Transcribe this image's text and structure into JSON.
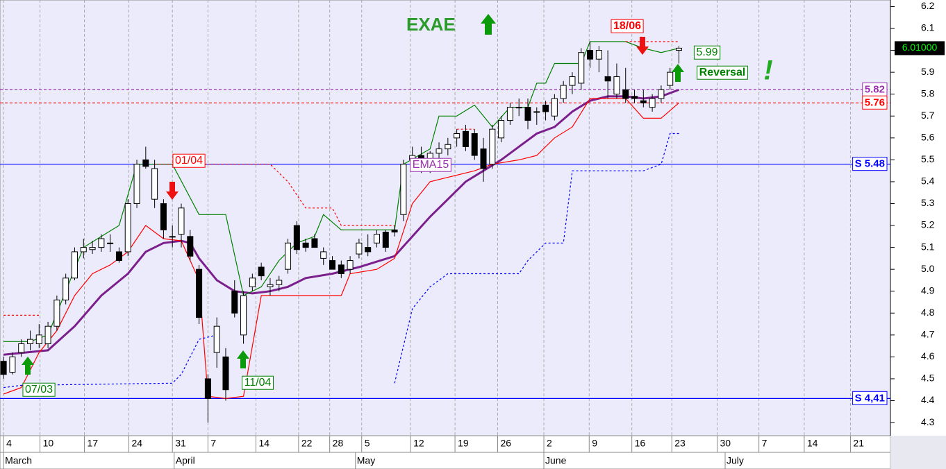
{
  "chart_data": {
    "type": "candlestick",
    "title": "EXAE",
    "open": [
      4.58,
      4.53,
      4.62,
      4.66,
      4.66,
      4.66,
      4.74,
      4.86,
      4.96,
      5.08,
      5.09,
      5.1,
      5.12,
      5.08,
      5.08,
      5.3,
      5.5,
      5.32,
      5.3,
      5.15,
      5.16,
      5.15,
      5.0,
      4.5,
      4.62,
      4.6,
      4.9,
      4.7,
      4.92,
      5.01,
      4.92,
      4.93,
      5.0,
      5.2,
      5.12,
      5.14,
      5.05,
      5.04,
      5.02,
      5.0,
      5.07,
      5.1,
      5.12,
      5.17,
      5.18,
      5.25,
      5.5,
      5.52,
      5.5,
      5.53,
      5.55,
      5.6,
      5.63,
      5.62,
      5.55,
      5.48,
      5.6,
      5.68,
      5.74,
      5.74,
      5.72,
      5.75,
      5.7,
      5.78,
      5.84,
      5.85,
      6.0,
      5.96,
      5.88,
      5.8,
      5.82,
      5.79,
      5.77,
      5.74,
      5.78,
      5.84,
      6.0
    ],
    "high": [
      4.6,
      4.62,
      4.68,
      4.72,
      4.75,
      4.76,
      4.88,
      4.98,
      5.1,
      5.14,
      5.13,
      5.16,
      5.16,
      5.1,
      5.32,
      5.5,
      5.56,
      5.5,
      5.32,
      5.2,
      5.3,
      5.18,
      5.02,
      4.52,
      4.78,
      4.64,
      4.95,
      4.9,
      4.98,
      5.03,
      4.96,
      4.97,
      5.14,
      5.22,
      5.14,
      5.16,
      5.1,
      5.06,
      5.04,
      5.06,
      5.14,
      5.16,
      5.18,
      5.18,
      5.2,
      5.5,
      5.56,
      5.56,
      5.54,
      5.58,
      5.6,
      5.64,
      5.66,
      5.64,
      5.6,
      5.66,
      5.7,
      5.76,
      5.78,
      5.78,
      5.74,
      5.77,
      5.8,
      5.86,
      5.9,
      6.01,
      6.04,
      6.02,
      6.0,
      5.94,
      5.92,
      5.82,
      5.82,
      5.8,
      5.84,
      5.92,
      6.02
    ],
    "low": [
      4.5,
      4.52,
      4.6,
      4.63,
      4.64,
      4.64,
      4.72,
      4.84,
      4.95,
      5.05,
      5.07,
      5.08,
      5.08,
      5.03,
      5.06,
      5.28,
      5.46,
      5.28,
      5.14,
      5.1,
      5.1,
      5.04,
      4.75,
      4.3,
      4.55,
      4.4,
      4.78,
      4.66,
      4.9,
      4.95,
      4.88,
      4.9,
      4.98,
      5.07,
      5.08,
      5.1,
      5.02,
      5.0,
      4.96,
      4.98,
      5.05,
      5.06,
      5.1,
      5.08,
      5.15,
      5.22,
      5.46,
      5.44,
      5.44,
      5.5,
      5.52,
      5.56,
      5.54,
      5.5,
      5.4,
      5.46,
      5.58,
      5.66,
      5.7,
      5.64,
      5.66,
      5.68,
      5.68,
      5.76,
      5.8,
      5.82,
      5.92,
      5.9,
      5.78,
      5.78,
      5.76,
      5.76,
      5.74,
      5.72,
      5.76,
      5.82,
      5.94
    ],
    "close": [
      4.52,
      4.6,
      4.66,
      4.68,
      4.7,
      4.74,
      4.86,
      4.96,
      5.08,
      5.1,
      5.1,
      5.14,
      5.12,
      5.04,
      5.3,
      5.48,
      5.47,
      5.46,
      5.18,
      5.15,
      5.28,
      5.06,
      4.78,
      4.41,
      4.74,
      4.45,
      4.8,
      4.88,
      4.96,
      4.97,
      4.93,
      4.95,
      5.12,
      5.09,
      5.1,
      5.1,
      5.08,
      5.0,
      4.98,
      5.04,
      5.12,
      5.08,
      5.16,
      5.1,
      5.17,
      5.48,
      5.52,
      5.5,
      5.53,
      5.55,
      5.57,
      5.62,
      5.56,
      5.52,
      5.46,
      5.64,
      5.68,
      5.74,
      5.74,
      5.68,
      5.72,
      5.72,
      5.78,
      5.84,
      5.88,
      5.99,
      5.96,
      6.0,
      5.86,
      5.88,
      5.78,
      5.78,
      5.76,
      5.78,
      5.82,
      5.9,
      6.01
    ],
    "lines": [
      {
        "color": "#7b1f8c",
        "style": "thick",
        "x": [
          0,
          5,
          8,
          11,
          14,
          16,
          18,
          20,
          21,
          22,
          24,
          26,
          28,
          30,
          32,
          34,
          37,
          40,
          44,
          46,
          48,
          50,
          52,
          54,
          56,
          58,
          60,
          62,
          64,
          66,
          68,
          70,
          72,
          74,
          76
        ],
        "values": [
          4.61,
          4.63,
          4.74,
          4.88,
          4.98,
          5.08,
          5.12,
          5.13,
          5.12,
          5.05,
          4.95,
          4.9,
          4.89,
          4.9,
          4.92,
          4.96,
          4.98,
          5.01,
          5.06,
          5.15,
          5.24,
          5.32,
          5.4,
          5.45,
          5.5,
          5.56,
          5.62,
          5.65,
          5.72,
          5.77,
          5.79,
          5.79,
          5.78,
          5.79,
          5.82
        ]
      },
      {
        "color": "#ff0000",
        "style": "solid",
        "x": [
          0,
          2,
          4,
          6,
          8,
          10,
          12,
          14,
          16,
          18,
          20,
          22,
          23,
          25,
          27,
          29,
          32,
          36,
          38,
          39,
          42,
          44,
          46,
          48,
          50,
          53,
          55,
          58,
          60,
          62,
          64,
          66,
          70,
          72,
          74,
          76
        ],
        "values": [
          4.43,
          4.46,
          4.62,
          4.72,
          4.88,
          4.98,
          5.02,
          5.08,
          5.2,
          5.14,
          5.13,
          4.95,
          4.42,
          4.41,
          4.42,
          4.88,
          4.88,
          4.88,
          4.88,
          4.98,
          5.0,
          5.05,
          5.3,
          5.4,
          5.42,
          5.45,
          5.48,
          5.5,
          5.52,
          5.6,
          5.65,
          5.78,
          5.78,
          5.69,
          5.69,
          5.76
        ]
      },
      {
        "color": "#008000",
        "style": "solid",
        "x": [
          0,
          3,
          5,
          7,
          9,
          11,
          13,
          15,
          17,
          19,
          22,
          25,
          27,
          29,
          31,
          33,
          35,
          36,
          38,
          40,
          44,
          45,
          48,
          49,
          51,
          53,
          55,
          57,
          59,
          60,
          61,
          62,
          65,
          66,
          68,
          70,
          72,
          74,
          76
        ],
        "values": [
          4.67,
          4.67,
          4.7,
          4.9,
          5.1,
          5.15,
          5.2,
          5.48,
          5.48,
          5.48,
          5.25,
          5.25,
          4.88,
          4.92,
          5.04,
          5.12,
          5.15,
          5.25,
          5.18,
          5.18,
          5.18,
          5.48,
          5.55,
          5.7,
          5.7,
          5.75,
          5.65,
          5.74,
          5.74,
          5.85,
          5.85,
          5.94,
          5.94,
          6.04,
          6.04,
          6.04,
          6.01,
          5.99,
          6.01
        ]
      },
      {
        "color": "#0000ff",
        "style": "dashed",
        "x": [
          0,
          2,
          19,
          20,
          22,
          24,
          42,
          44,
          46,
          48,
          50,
          53,
          58,
          59,
          61,
          63,
          64,
          72,
          74,
          75,
          76
        ],
        "values": [
          4.46,
          4.47,
          4.48,
          4.52,
          4.68,
          4.7,
          null,
          4.48,
          4.82,
          4.92,
          4.98,
          4.98,
          4.98,
          5.04,
          5.12,
          5.12,
          5.45,
          5.45,
          5.48,
          5.62,
          5.62
        ]
      },
      {
        "color": "#ff0000",
        "style": "dashed",
        "x": [
          0,
          4,
          17,
          17,
          30,
          32,
          34,
          37,
          38,
          44,
          51,
          51,
          53,
          70,
          70,
          76
        ],
        "values": [
          4.79,
          4.79,
          null,
          5.48,
          5.48,
          5.4,
          5.28,
          5.28,
          5.2,
          5.2,
          null,
          5.64,
          5.64,
          null,
          6.04,
          6.04
        ]
      }
    ],
    "levels": [
      {
        "label": "S 5.48",
        "value": 5.48,
        "color": "#0000ff",
        "style": "solid"
      },
      {
        "label": "S 4,41",
        "value": 4.41,
        "color": "#0000ff",
        "style": "solid"
      },
      {
        "label": "5.82",
        "value": 5.82,
        "color": "#9b2fae",
        "style": "dashed"
      },
      {
        "label": "5.76",
        "value": 5.76,
        "color": "#ff0000",
        "style": "dashed"
      }
    ],
    "price_tag": {
      "value": 6.01,
      "label": "6.01000"
    },
    "annotations": [
      {
        "text": "18/06",
        "color": "#ff0000"
      },
      {
        "text": "01/04",
        "color": "#ff0000"
      },
      {
        "text": "07/03",
        "color": "#008000"
      },
      {
        "text": "11/04",
        "color": "#008000"
      },
      {
        "text": "5.99",
        "color": "#008000"
      },
      {
        "text": "Reversal",
        "color": "#008000"
      },
      {
        "text": "!",
        "color": "#22aa22"
      },
      {
        "text": "EMA15",
        "color": "#9b2fae"
      }
    ],
    "xlim": [
      -0.4,
      99.8
    ],
    "ylim": [
      4.24,
      6.23
    ],
    "grid": "x",
    "xticks": [
      {
        "value": 0,
        "label": "4"
      },
      {
        "value": 4.1,
        "label": "10"
      },
      {
        "value": 9.1,
        "label": "17"
      },
      {
        "value": 14.1,
        "label": "24"
      },
      {
        "value": 19.0,
        "label": "31"
      },
      {
        "value": 23.0,
        "label": "7"
      },
      {
        "value": 28.4,
        "label": "14"
      },
      {
        "value": 33.2,
        "label": "22"
      },
      {
        "value": 36.7,
        "label": "28"
      },
      {
        "value": 40.3,
        "label": "5"
      },
      {
        "value": 45.8,
        "label": "12"
      },
      {
        "value": 50.8,
        "label": "19"
      },
      {
        "value": 55.6,
        "label": "26"
      },
      {
        "value": 60.8,
        "label": "2"
      },
      {
        "value": 65.9,
        "label": "9"
      },
      {
        "value": 70.7,
        "label": "16"
      },
      {
        "value": 75.2,
        "label": "23"
      },
      {
        "value": 80.3,
        "label": "30"
      },
      {
        "value": 85.0,
        "label": "7"
      },
      {
        "value": 90.1,
        "label": "14"
      },
      {
        "value": 95.3,
        "label": "21"
      }
    ],
    "months": [
      {
        "value": 0,
        "label": "March"
      },
      {
        "value": 19.2,
        "label": "April"
      },
      {
        "value": 39.6,
        "label": "May"
      },
      {
        "value": 60.8,
        "label": "June"
      },
      {
        "value": 81.2,
        "label": "July"
      }
    ],
    "yticks": [
      4.3,
      4.4,
      4.5,
      4.6,
      4.7,
      4.8,
      4.9,
      {
        "value": 5.0,
        "label": "5.0"
      },
      5.1,
      5.2,
      5.3,
      5.4,
      5.5,
      5.6,
      5.7,
      5.8,
      5.9,
      {
        "value": 6.0,
        "label": "6.0"
      },
      6.1,
      6.2
    ]
  }
}
